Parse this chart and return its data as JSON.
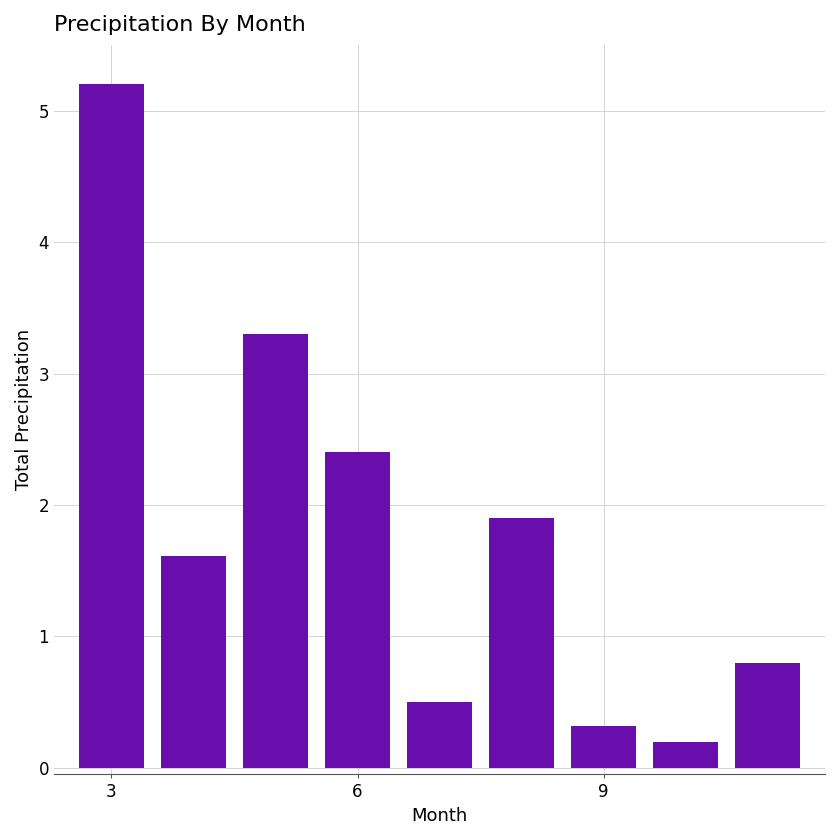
{
  "months": [
    3,
    4,
    5,
    6,
    7,
    8,
    9,
    10,
    11
  ],
  "values": [
    5.2,
    1.61,
    3.3,
    2.4,
    0.5,
    1.9,
    0.32,
    0.2,
    0.8
  ],
  "bar_color": "#6A0DAD",
  "title": "Precipitation By Month",
  "xlabel": "Month",
  "ylabel": "Total Precipitation",
  "xticks": [
    3,
    6,
    9
  ],
  "yticks": [
    0,
    1,
    2,
    3,
    4,
    5
  ],
  "ylim": [
    -0.05,
    5.5
  ],
  "xlim": [
    2.3,
    11.7
  ],
  "background_color": "#ffffff",
  "grid_color": "#d3d3d3",
  "title_fontsize": 16,
  "axis_fontsize": 13,
  "tick_fontsize": 12,
  "bar_width": 0.8
}
